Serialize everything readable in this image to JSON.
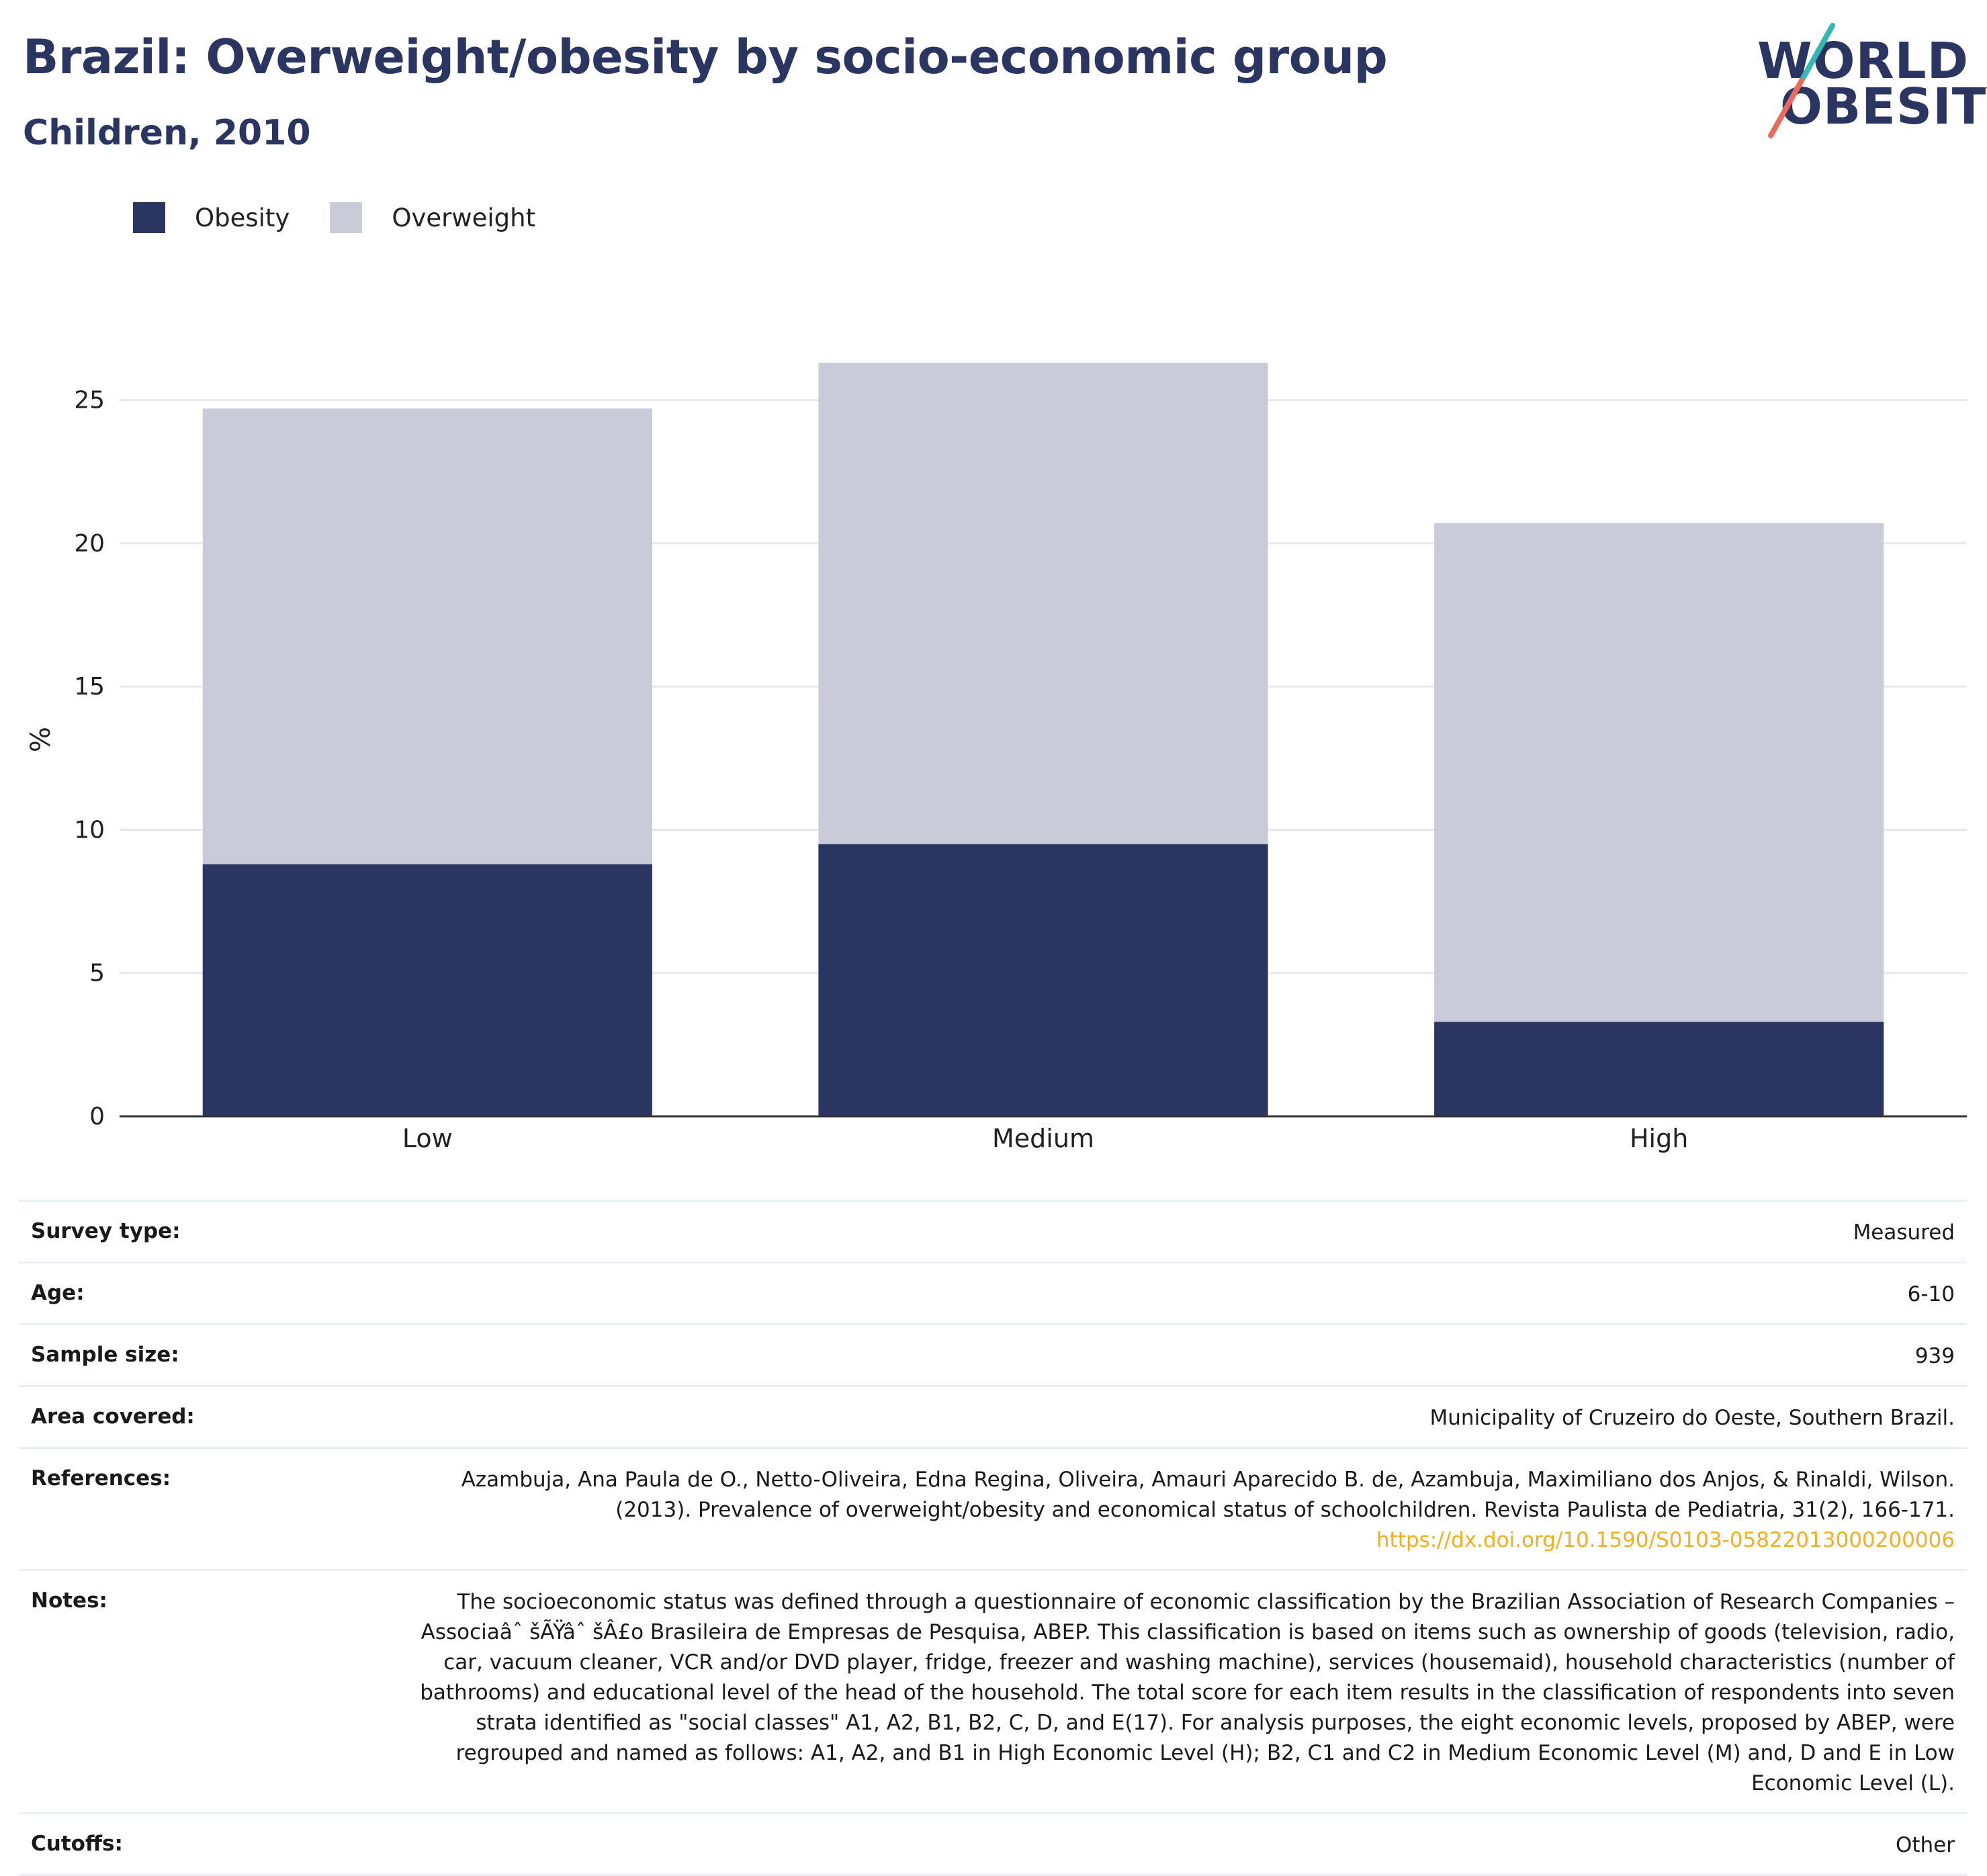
{
  "header": {
    "title": "Brazil: Overweight/obesity by socio-economic group",
    "subtitle": "Children, 2010"
  },
  "logo": {
    "line1": "WORLD",
    "line2": "OBESITY"
  },
  "colors": {
    "obesity": "#2a3562",
    "overweight": "#c9ccd8",
    "accent_teal": "#35b7b4",
    "accent_coral": "#ec6a5a",
    "link": "#f2b01e"
  },
  "legend": [
    {
      "label": "Obesity",
      "color": "#2a3562"
    },
    {
      "label": "Overweight",
      "color": "#c9ccd8"
    }
  ],
  "chart_data": {
    "type": "bar",
    "stacked": true,
    "categories": [
      "Low",
      "Medium",
      "High"
    ],
    "series": [
      {
        "name": "Obesity",
        "values": [
          8.8,
          9.5,
          3.3
        ]
      },
      {
        "name": "Overweight",
        "values": [
          15.9,
          16.8,
          17.4
        ]
      }
    ],
    "ylabel": "%",
    "ylim": [
      0,
      26.3
    ],
    "yticks": [
      0,
      5,
      10,
      15,
      20,
      25
    ],
    "grid": true,
    "legend_position": "top-left"
  },
  "info": {
    "rows": [
      {
        "label": "Survey type:",
        "value": "Measured"
      },
      {
        "label": "Age:",
        "value": "6-10"
      },
      {
        "label": "Sample size:",
        "value": "939"
      },
      {
        "label": "Area covered:",
        "value": "Municipality of Cruzeiro do Oeste, Southern Brazil."
      },
      {
        "label": "References:",
        "value": "Azambuja, Ana Paula de O., Netto-Oliveira, Edna Regina, Oliveira, Amauri Aparecido B. de, Azambuja, Maximiliano dos Anjos, & Rinaldi, Wilson. (2013). Prevalence of overweight/obesity and economical status of schoolchildren. Revista Paulista de Pediatria, 31(2), 166-171. ",
        "link": "https://dx.doi.org/10.1590/S0103-05822013000200006"
      },
      {
        "label": "Notes:",
        "value": "The socioeconomic status was defined through a questionnaire of economic classification by the Brazilian Association of Research Companies – Associaâˆ šÃŸâˆ šÂ£o Brasileira de Empresas de Pesquisa, ABEP. This classification is based on items such as ownership of goods (television, radio, car, vacuum cleaner, VCR and/or DVD player, fridge, freezer and washing machine), services (housemaid), household characteristics (number of bathrooms) and educational level of the head of the household. The total score for each item results in the classification of respondents into seven strata identified as \"social classes\" A1, A2, B1, B2, C, D, and E(17). For analysis purposes, the eight economic levels, proposed by ABEP, were regrouped and named as follows: A1, A2, and B1 in High Economic Level (H); B2, C1 and C2 in Medium Economic Level (M) and, D and E in Low Economic Level (L)."
      },
      {
        "label": "Cutoffs:",
        "value": "Other"
      }
    ]
  }
}
